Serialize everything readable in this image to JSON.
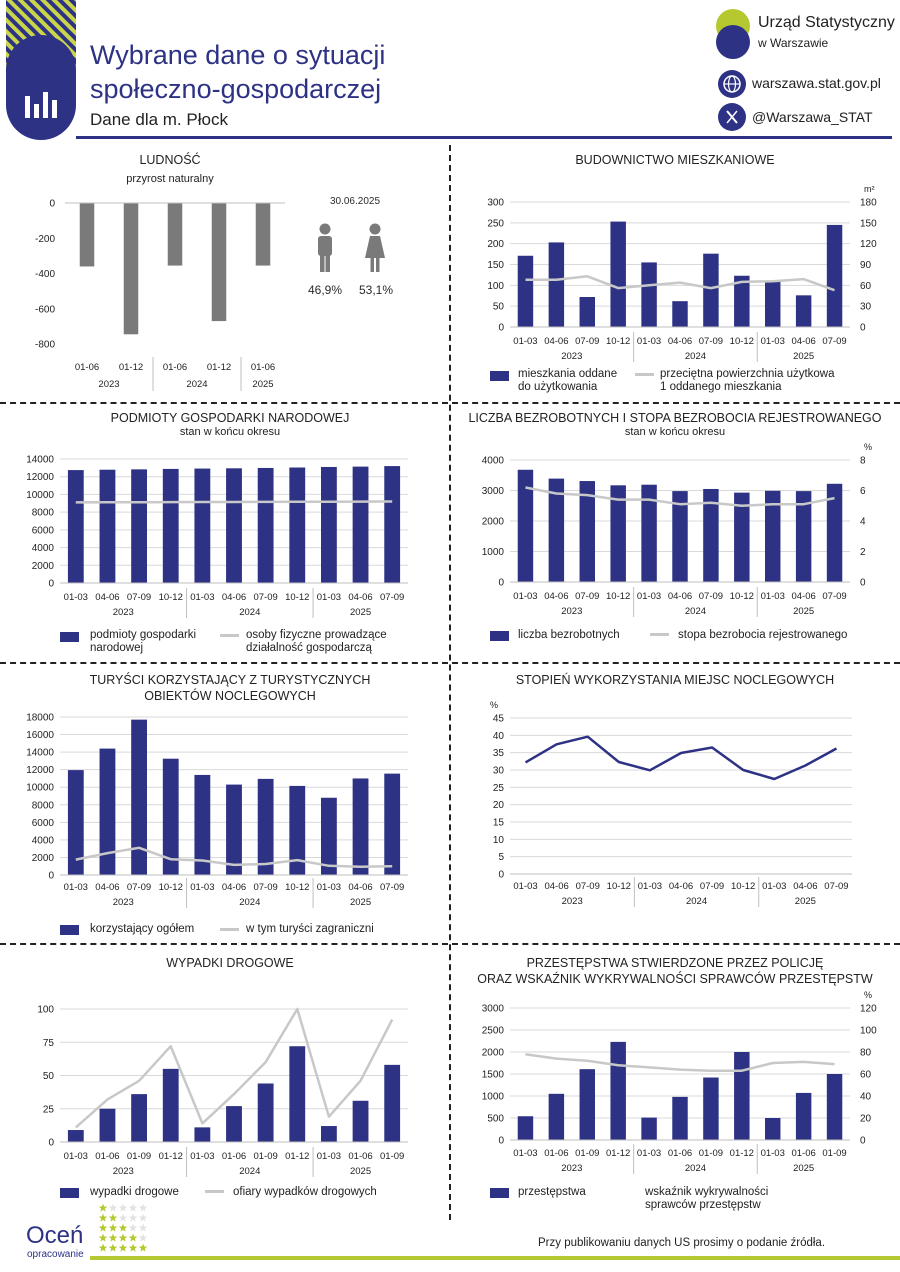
{
  "header": {
    "title_line1": "Wybrane dane o sytuacji",
    "title_line2": "społeczno-gospodarczej",
    "subtitle": "Dane dla m. Płock",
    "office_line1": "Urząd Statystyczny",
    "office_line2": "w Warszawie",
    "website": "warszawa.stat.gov.pl",
    "twitter": "@Warszawa_STAT",
    "brand_color": "#2d3285",
    "accent_color": "#b5c82f"
  },
  "footer": {
    "rate_word": "Oceń",
    "rate_sub": "opracowanie",
    "note": "Przy publikowaniu danych US prosimy o podanie źródła."
  },
  "chart_data": [
    {
      "id": "ludnosc",
      "type": "bar",
      "title": "LUDNOŚĆ",
      "subtitle": "przyrost naturalny",
      "categories": [
        "01-06",
        "01-12",
        "01-06",
        "01-12",
        "01-06"
      ],
      "year_labels": [
        "2023",
        "2024",
        "2025"
      ],
      "values": [
        -360,
        -745,
        -355,
        -670,
        -355
      ],
      "ylim": [
        -800,
        0
      ],
      "yticks": [
        "0",
        "-200",
        "-400",
        "-600",
        "-800"
      ],
      "gender": {
        "date": "30.06.2025",
        "male": "46,9%",
        "female": "53,1%"
      }
    },
    {
      "id": "budownictwo",
      "type": "bar",
      "title": "BUDOWNICTWO MIESZKANIOWE",
      "categories": [
        "01-03",
        "04-06",
        "07-09",
        "10-12",
        "01-03",
        "04-06",
        "07-09",
        "10-12",
        "01-03",
        "04-06",
        "07-09"
      ],
      "year_labels": [
        "2023",
        "2024",
        "2025"
      ],
      "series": [
        {
          "name": "mieszkania oddane do użytkowania",
          "legend": [
            "mieszkania oddane",
            "do użytkowania"
          ],
          "values": [
            171,
            203,
            72,
            253,
            155,
            62,
            176,
            123,
            109,
            76,
            245
          ]
        },
        {
          "name": "przeciętna powierzchnia użytkowa 1 oddanego mieszkania",
          "legend": [
            "przeciętna powierzchnia użytkowa",
            "1 oddanego mieszkania"
          ],
          "axis": "right",
          "values": [
            68,
            68,
            73,
            56,
            60,
            64,
            56,
            65,
            66,
            69,
            53
          ]
        }
      ],
      "ylim": [
        0,
        300
      ],
      "yticks": [
        "0",
        "50",
        "100",
        "150",
        "200",
        "250",
        "300"
      ],
      "y2lim": [
        0,
        180
      ],
      "y2ticks": [
        "0",
        "30",
        "60",
        "90",
        "120",
        "150",
        "180"
      ],
      "y2unit": "m²"
    },
    {
      "id": "podmioty",
      "type": "bar",
      "title": "PODMIOTY GOSPODARKI NARODOWEJ",
      "subtitle": "stan w końcu okresu",
      "categories": [
        "01-03",
        "04-06",
        "07-09",
        "10-12",
        "01-03",
        "04-06",
        "07-09",
        "10-12",
        "01-03",
        "04-06",
        "07-09"
      ],
      "year_labels": [
        "2023",
        "2024",
        "2025"
      ],
      "series": [
        {
          "name": "podmioty gospodarki narodowej",
          "legend": [
            "podmioty gospodarki",
            "narodowej"
          ],
          "values": [
            12750,
            12790,
            12830,
            12880,
            12920,
            12950,
            12990,
            13040,
            13100,
            13140,
            13200
          ]
        },
        {
          "name": "osoby fizyczne prowadzące działalność gospodarczą",
          "legend": [
            "osoby fizyczne prowadzące",
            "działalność gospodarczą"
          ],
          "values": [
            9100,
            9110,
            9120,
            9130,
            9140,
            9150,
            9160,
            9170,
            9180,
            9190,
            9200
          ]
        }
      ],
      "ylim": [
        0,
        14000
      ],
      "yticks": [
        "0",
        "2000",
        "4000",
        "6000",
        "8000",
        "10000",
        "12000",
        "14000"
      ]
    },
    {
      "id": "bezrobocie",
      "type": "bar",
      "title": "LICZBA BEZROBOTNYCH I STOPA BEZROBOCIA REJESTROWANEGO",
      "subtitle": "stan w końcu okresu",
      "categories": [
        "01-03",
        "04-06",
        "07-09",
        "10-12",
        "01-03",
        "04-06",
        "07-09",
        "10-12",
        "01-03",
        "04-06",
        "07-09"
      ],
      "year_labels": [
        "2023",
        "2024",
        "2025"
      ],
      "series": [
        {
          "name": "liczba bezrobotnych",
          "values": [
            3680,
            3390,
            3310,
            3170,
            3190,
            2980,
            3050,
            2930,
            2990,
            2980,
            3220
          ]
        },
        {
          "name": "stopa bezrobocia rejestrowanego",
          "axis": "right",
          "values": [
            6.2,
            5.8,
            5.7,
            5.4,
            5.4,
            5.1,
            5.2,
            5.0,
            5.1,
            5.1,
            5.5
          ]
        }
      ],
      "ylim": [
        0,
        4000
      ],
      "yticks": [
        "0",
        "1000",
        "2000",
        "3000",
        "4000"
      ],
      "y2lim": [
        0,
        8
      ],
      "y2ticks": [
        "0",
        "2",
        "4",
        "6",
        "8"
      ],
      "y2unit": "%"
    },
    {
      "id": "turysci",
      "type": "bar",
      "title_line1": "TURYŚCI KORZYSTAJĄCY Z TURYSTYCZNYCH",
      "title_line2": "OBIEKTÓW NOCLEGOWYCH",
      "categories": [
        "01-03",
        "04-06",
        "07-09",
        "10-12",
        "01-03",
        "04-06",
        "07-09",
        "10-12",
        "01-03",
        "04-06",
        "07-09"
      ],
      "year_labels": [
        "2023",
        "2024",
        "2025"
      ],
      "series": [
        {
          "name": "korzystający ogółem",
          "values": [
            11950,
            14400,
            17700,
            13250,
            11400,
            10300,
            10950,
            10150,
            8800,
            11000,
            11550
          ]
        },
        {
          "name": "w tym turyści zagraniczni",
          "values": [
            1750,
            2500,
            3100,
            1800,
            1650,
            1150,
            1250,
            1700,
            1050,
            950,
            1000
          ]
        }
      ],
      "ylim": [
        0,
        18000
      ],
      "yticks": [
        "0",
        "2000",
        "4000",
        "6000",
        "8000",
        "10000",
        "12000",
        "14000",
        "16000",
        "18000"
      ]
    },
    {
      "id": "noclegi",
      "type": "line",
      "title": "STOPIEŃ WYKORZYSTANIA MIEJSC NOCLEGOWYCH",
      "categories": [
        "01-03",
        "04-06",
        "07-09",
        "10-12",
        "01-03",
        "04-06",
        "07-09",
        "10-12",
        "01-03",
        "04-06",
        "07-09"
      ],
      "year_labels": [
        "2023",
        "2024",
        "2025"
      ],
      "values": [
        32.2,
        37.4,
        39.6,
        32.3,
        29.9,
        34.9,
        36.5,
        30.0,
        27.4,
        31.3,
        36.2
      ],
      "ylim": [
        0,
        45
      ],
      "yticks": [
        "0",
        "5",
        "10",
        "15",
        "20",
        "25",
        "30",
        "35",
        "40",
        "45"
      ],
      "yunit": "%"
    },
    {
      "id": "wypadki",
      "type": "bar",
      "title": "WYPADKI DROGOWE",
      "categories": [
        "01-03",
        "01-06",
        "01-09",
        "01-12",
        "01-03",
        "01-06",
        "01-09",
        "01-12",
        "01-03",
        "01-06",
        "01-09"
      ],
      "year_labels": [
        "2023",
        "2024",
        "2025"
      ],
      "series": [
        {
          "name": "wypadki drogowe",
          "values": [
            9,
            25,
            36,
            55,
            11,
            27,
            44,
            72,
            12,
            31,
            58
          ]
        },
        {
          "name": "ofiary wypadków drogowych",
          "values": [
            11,
            32,
            46,
            72,
            14,
            36,
            60,
            100,
            19,
            46,
            92
          ]
        }
      ],
      "ylim": [
        0,
        100
      ],
      "yticks": [
        "0",
        "25",
        "50",
        "75",
        "100"
      ]
    },
    {
      "id": "przestepstwa",
      "type": "bar",
      "title_line1": "PRZESTĘPSTWA STWIERDZONE PRZEZ POLICJĘ",
      "title_line2": "ORAZ WSKAŹNIK WYKRYWALNOŚCI SPRAWCÓW PRZESTĘPSTW",
      "categories": [
        "01-03",
        "01-06",
        "01-09",
        "01-12",
        "01-03",
        "01-06",
        "01-09",
        "01-12",
        "01-03",
        "01-06",
        "01-09"
      ],
      "year_labels": [
        "2023",
        "2024",
        "2025"
      ],
      "series": [
        {
          "name": "przestępstwa",
          "values": [
            540,
            1050,
            1610,
            2230,
            510,
            980,
            1420,
            2000,
            500,
            1070,
            1500
          ]
        },
        {
          "name": "wskaźnik wykrywalności sprawców przestępstw",
          "legend": [
            "wskaźnik wykrywalności",
            "sprawców przestępstw"
          ],
          "axis": "right",
          "values": [
            78,
            74,
            72,
            68,
            66,
            64,
            63,
            63,
            70,
            71,
            69
          ]
        }
      ],
      "ylim": [
        0,
        3000
      ],
      "yticks": [
        "0",
        "500",
        "1000",
        "1500",
        "2000",
        "2500",
        "3000"
      ],
      "y2lim": [
        0,
        120
      ],
      "y2ticks": [
        "0",
        "20",
        "40",
        "60",
        "80",
        "100",
        "120"
      ],
      "y2unit": "%"
    }
  ]
}
